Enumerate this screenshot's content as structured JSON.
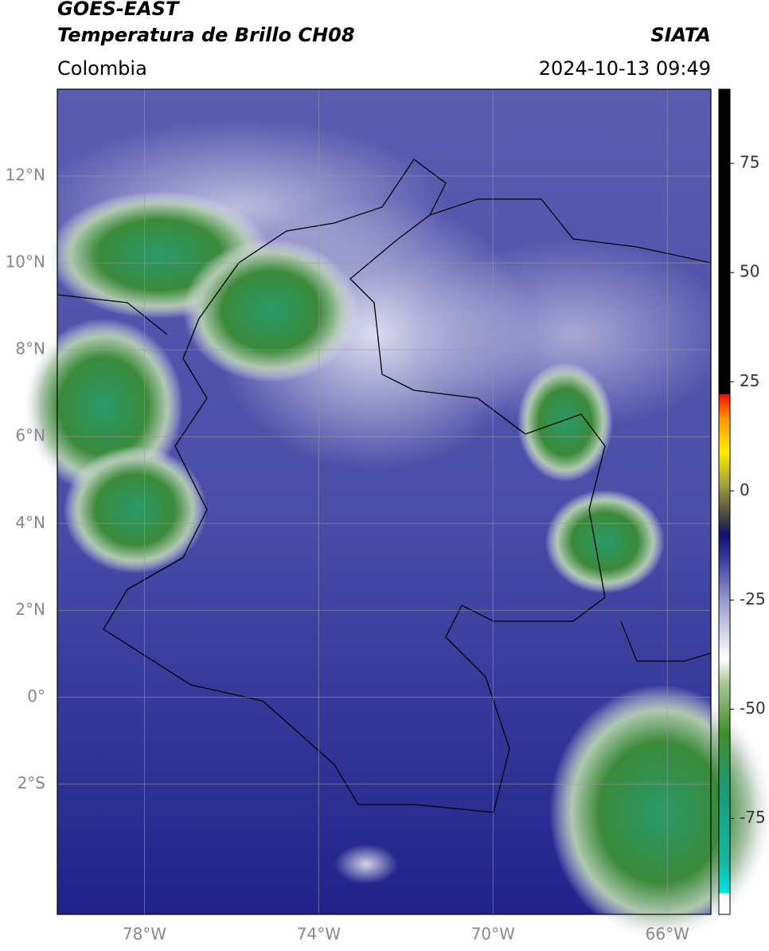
{
  "header": {
    "title": "GOES-EAST",
    "subtitle": "Temperatura de Brillo CH08",
    "region": "Colombia",
    "agency": "SIATA",
    "datetime": "2024-10-13 09:49"
  },
  "map": {
    "xlim": [
      -80,
      -65
    ],
    "ylim": [
      -5,
      14
    ],
    "xticks": [
      {
        "value": -78,
        "label": "78°W"
      },
      {
        "value": -74,
        "label": "74°W"
      },
      {
        "value": -70,
        "label": "70°W"
      },
      {
        "value": -66,
        "label": "66°W"
      }
    ],
    "yticks": [
      {
        "value": 12,
        "label": "12°N"
      },
      {
        "value": 10,
        "label": "10°N"
      },
      {
        "value": 8,
        "label": "8°N"
      },
      {
        "value": 6,
        "label": "6°N"
      },
      {
        "value": 4,
        "label": "4°N"
      },
      {
        "value": 2,
        "label": "2°N"
      },
      {
        "value": 0,
        "label": "0°"
      },
      {
        "value": -2,
        "label": "2°S"
      }
    ],
    "grid": true
  },
  "colorbar": {
    "ylim": [
      -97,
      92
    ],
    "yticks": [
      75,
      50,
      25,
      0,
      -25,
      -50,
      -75
    ]
  }
}
